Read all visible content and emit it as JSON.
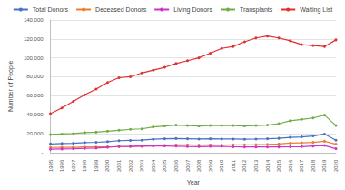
{
  "chart_data": {
    "type": "line",
    "x_label": "Year",
    "y_label": "Number of People",
    "categories": [
      "1995",
      "1996",
      "1997",
      "1998",
      "1999",
      "2000",
      "2001",
      "2002",
      "2003",
      "2004",
      "2005",
      "2006",
      "2007",
      "2008",
      "2009",
      "2010",
      "2011",
      "2012",
      "2013",
      "2014",
      "2015",
      "2016",
      "2017",
      "2018",
      "2019",
      "2020"
    ],
    "series": [
      {
        "name": "Total Donors",
        "color": "#4472c4",
        "values": [
          9000,
          9500,
          9800,
          10500,
          10800,
          11500,
          12500,
          12800,
          13000,
          14000,
          14500,
          14800,
          14500,
          14200,
          14500,
          14300,
          14200,
          14000,
          14200,
          14500,
          15000,
          16000,
          16500,
          17500,
          19500,
          13000
        ]
      },
      {
        "name": "Deceased Donors",
        "color": "#ed7d31",
        "values": [
          5300,
          5400,
          5500,
          5800,
          5800,
          5900,
          6000,
          6200,
          6500,
          7100,
          7600,
          8000,
          8100,
          7900,
          8000,
          7900,
          8100,
          8100,
          8300,
          8600,
          9100,
          9900,
          10300,
          10700,
          11900,
          8800
        ]
      },
      {
        "name": "Living Donors",
        "color": "#cc33cc",
        "values": [
          3400,
          3700,
          4000,
          4400,
          4700,
          5500,
          6500,
          6600,
          6800,
          7000,
          6900,
          6700,
          6300,
          6200,
          6400,
          6500,
          6000,
          5800,
          5800,
          5800,
          5900,
          6000,
          6200,
          6800,
          7400,
          4000
        ]
      },
      {
        "name": "Transplants",
        "color": "#70ad47",
        "values": [
          19000,
          19500,
          20000,
          21000,
          21500,
          22500,
          23500,
          24500,
          25000,
          27000,
          28000,
          29000,
          28500,
          28000,
          28500,
          28500,
          28500,
          28000,
          28500,
          29000,
          30500,
          33500,
          35000,
          36500,
          39500,
          28500
        ]
      },
      {
        "name": "Waiting List",
        "color": "#e03030",
        "values": [
          41000,
          47000,
          54000,
          61000,
          67000,
          74000,
          79000,
          80000,
          84000,
          87000,
          90000,
          94000,
          97000,
          100000,
          105000,
          110000,
          112000,
          117000,
          121000,
          123000,
          121000,
          118000,
          114000,
          113000,
          112000,
          119000
        ]
      }
    ],
    "ylim": [
      0,
      140000
    ],
    "yticks": [
      {
        "value": 0,
        "label": "-"
      },
      {
        "value": 20000,
        "label": "20,000"
      },
      {
        "value": 40000,
        "label": "40,000"
      },
      {
        "value": 60000,
        "label": "60,000"
      },
      {
        "value": 80000,
        "label": "80,000"
      },
      {
        "value": 100000,
        "label": "100,000"
      },
      {
        "value": 120000,
        "label": "120,000"
      },
      {
        "value": 140000,
        "label": "140,000"
      }
    ],
    "grid": true,
    "legend": "top",
    "marker": "circle"
  }
}
